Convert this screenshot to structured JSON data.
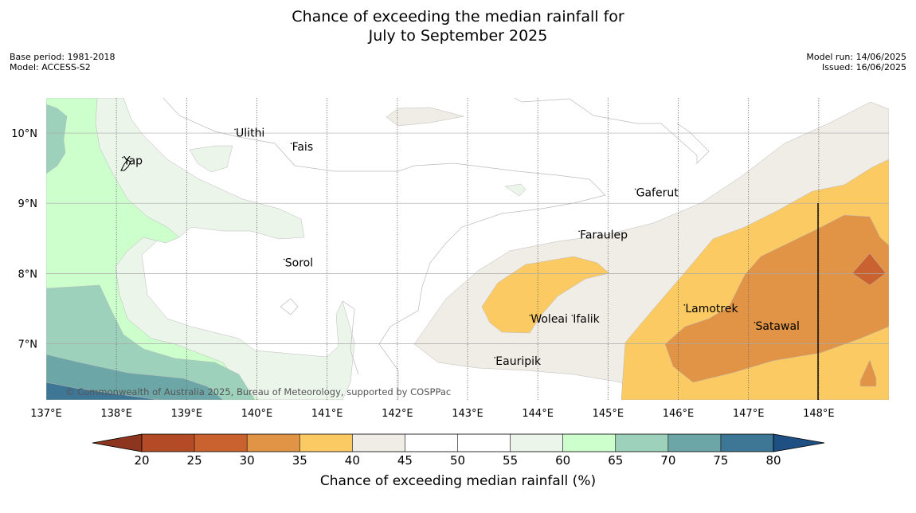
{
  "title_line1": "Chance of exceeding the median rainfall for",
  "title_line2": "July to September 2025",
  "meta_left": [
    "Base period: 1981-2018",
    "Model: ACCESS-S2"
  ],
  "meta_right": [
    "Model run: 14/06/2025",
    "Issued: 16/06/2025"
  ],
  "copyright": "© Commonwealth of Australia 2025, Bureau of Meteorology, supported by COSPPac",
  "axes": {
    "lon_range": [
      137.0,
      149.0
    ],
    "lat_range": [
      6.2,
      10.5
    ],
    "lon_ticks": [
      {
        "value": 137,
        "label": "137°E"
      },
      {
        "value": 138,
        "label": "138°E"
      },
      {
        "value": 139,
        "label": "139°E"
      },
      {
        "value": 140,
        "label": "140°E"
      },
      {
        "value": 141,
        "label": "141°E"
      },
      {
        "value": 142,
        "label": "142°E"
      },
      {
        "value": 143,
        "label": "143°E"
      },
      {
        "value": 144,
        "label": "144°E"
      },
      {
        "value": 145,
        "label": "145°E"
      },
      {
        "value": 146,
        "label": "146°E"
      },
      {
        "value": 147,
        "label": "147°E"
      },
      {
        "value": 148,
        "label": "148°E"
      }
    ],
    "lat_ticks": [
      {
        "value": 7,
        "label": "7°N"
      },
      {
        "value": 8,
        "label": "8°N"
      },
      {
        "value": 9,
        "label": "9°N"
      },
      {
        "value": 10,
        "label": "10°N"
      }
    ]
  },
  "places": [
    {
      "name": "Ulithi",
      "lon": 139.7,
      "lat": 9.95
    },
    {
      "name": "Fais",
      "lon": 140.5,
      "lat": 9.75
    },
    {
      "name": "Yap",
      "lon": 138.1,
      "lat": 9.55
    },
    {
      "name": "Gaferut",
      "lon": 145.4,
      "lat": 9.1
    },
    {
      "name": "Faraulep",
      "lon": 144.6,
      "lat": 8.5
    },
    {
      "name": "Sorol",
      "lon": 140.4,
      "lat": 8.1
    },
    {
      "name": "Woleai",
      "lon": 143.9,
      "lat": 7.3
    },
    {
      "name": "Ifalik",
      "lon": 144.5,
      "lat": 7.3
    },
    {
      "name": "Lamotrek",
      "lon": 146.1,
      "lat": 7.45
    },
    {
      "name": "Satawal",
      "lon": 147.1,
      "lat": 7.2
    },
    {
      "name": "Eauripik",
      "lon": 143.4,
      "lat": 6.7
    }
  ],
  "colorbar": {
    "label": "Chance of exceeding median rainfall (%)",
    "ticks": [
      "20",
      "25",
      "30",
      "35",
      "40",
      "45",
      "50",
      "55",
      "60",
      "65",
      "70",
      "75",
      "80"
    ],
    "under_color": "#8e3520",
    "over_color": "#1f5083",
    "colors": [
      "#b34b27",
      "#ca622f",
      "#e19346",
      "#fcca62",
      "#f0ece6",
      "#ffffff",
      "#ffffff",
      "#ebf5ea",
      "#ccffcc",
      "#9dd1bb",
      "#6ca6a7",
      "#3e7795"
    ]
  },
  "fill_colors": {
    "c20": "#b34b27",
    "c25": "#ca622f",
    "c30": "#e19346",
    "c35": "#fcca62",
    "c40": "#f0ece6",
    "c55": "#ebf5ea",
    "c60": "#ccffcc",
    "c65": "#9dd1bb",
    "c70": "#6ca6a7",
    "c75": "#3e7795"
  }
}
